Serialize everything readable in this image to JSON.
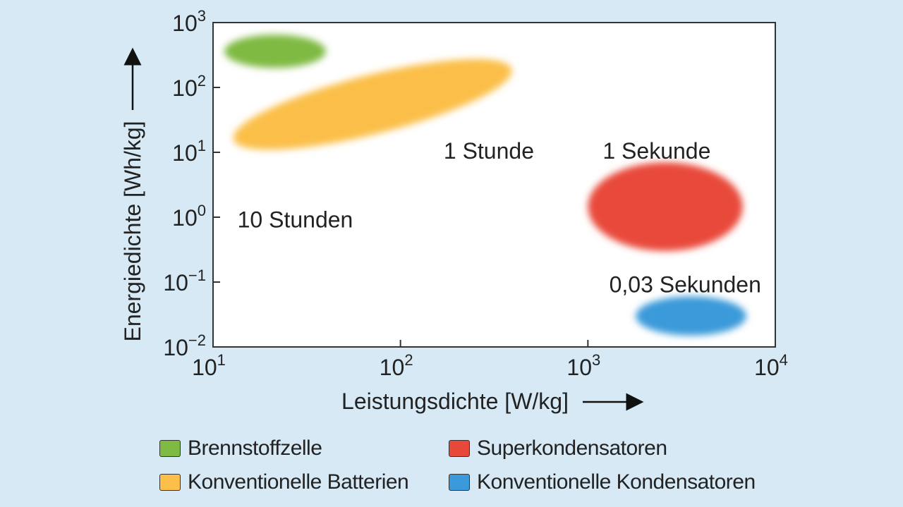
{
  "chart_data": {
    "type": "scatter",
    "subtype": "ragone-regions",
    "title": "",
    "xlabel": "Leistungsdichte [W/kg]",
    "ylabel": "Energiedichte [Wh/kg]",
    "x_scale": "log",
    "y_scale": "log",
    "xlim": [
      10,
      10000
    ],
    "ylim": [
      0.01,
      1000
    ],
    "grid": false,
    "x_ticks": [
      {
        "value": 10,
        "base": "10",
        "exp": "1"
      },
      {
        "value": 100,
        "base": "10",
        "exp": "2"
      },
      {
        "value": 1000,
        "base": "10",
        "exp": "3"
      },
      {
        "value": 10000,
        "base": "10",
        "exp": "4"
      }
    ],
    "y_ticks": [
      {
        "value": 1000,
        "base": "10",
        "exp": "3"
      },
      {
        "value": 100,
        "base": "10",
        "exp": "2"
      },
      {
        "value": 10,
        "base": "10",
        "exp": "1"
      },
      {
        "value": 1,
        "base": "10",
        "exp": "0"
      },
      {
        "value": 0.1,
        "base": "10",
        "exp": "−1"
      },
      {
        "value": 0.01,
        "base": "10",
        "exp": "−2"
      }
    ],
    "series": [
      {
        "name": "Brennstoffzelle",
        "color": "#7fba42",
        "region": {
          "x_range": [
            11.5,
            40
          ],
          "y_range": [
            200,
            650
          ],
          "center": [
            21,
            350
          ]
        }
      },
      {
        "name": "Konventionelle Batterien",
        "color": "#fbbf4a",
        "region": {
          "x_range": [
            12,
            420
          ],
          "y_range": [
            15,
            200
          ],
          "center": [
            60,
            55
          ]
        }
      },
      {
        "name": "Superkondensatoren",
        "color": "#e8483a",
        "region": {
          "x_range": [
            1000,
            6700
          ],
          "y_range": [
            0.3,
            7
          ],
          "center": [
            2700,
            2
          ]
        }
      },
      {
        "name": "Konventionelle Kondensatoren",
        "color": "#3a9ad9",
        "region": {
          "x_range": [
            1800,
            7000
          ],
          "y_range": [
            0.015,
            0.06
          ],
          "center": [
            4000,
            0.03
          ]
        }
      }
    ],
    "annotations": [
      {
        "text": "10 Stunden",
        "x": 13.5,
        "y": 0.7
      },
      {
        "text": "1 Stunde",
        "x": 170,
        "y": 8
      },
      {
        "text": "1 Sekunde",
        "x": 1200,
        "y": 8
      },
      {
        "text": "0,03 Sekunden",
        "x": 1300,
        "y": 0.07
      }
    ],
    "legend_position": "bottom"
  }
}
